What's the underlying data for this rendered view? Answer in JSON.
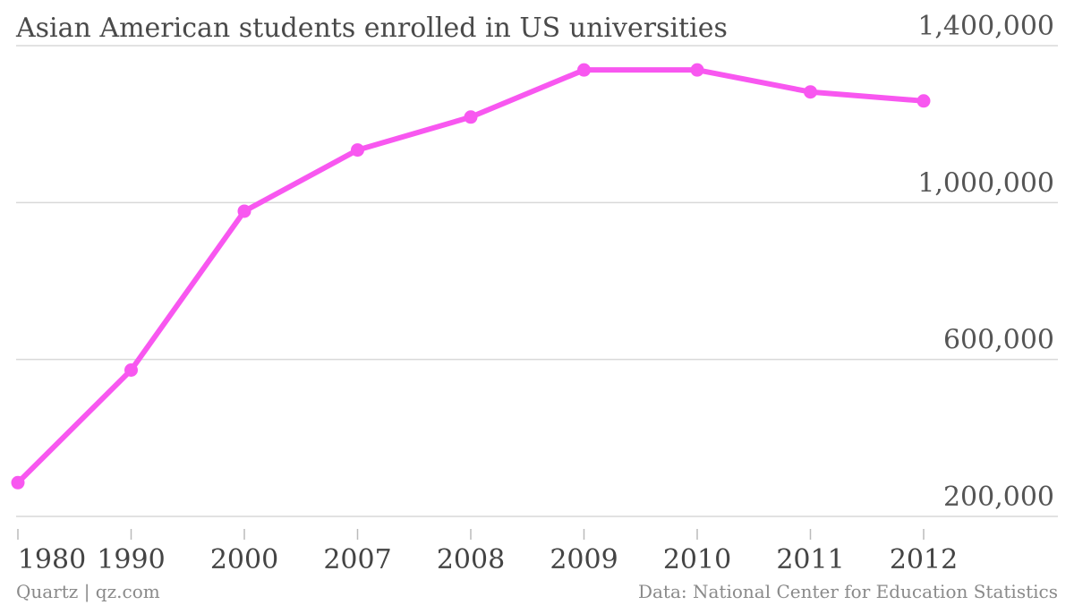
{
  "chart_data": {
    "type": "line",
    "title": "Asian American students enrolled in US universities",
    "xlabel": "",
    "ylabel": "",
    "categories": [
      "1980",
      "1990",
      "2000",
      "2007",
      "2008",
      "2009",
      "2010",
      "2011",
      "2012"
    ],
    "series": [
      {
        "values": [
          286000,
          573000,
          978000,
          1134000,
          1218000,
          1338000,
          1338000,
          1282000,
          1259000
        ]
      }
    ],
    "y_ticks": [
      "200,000",
      "600,000",
      "1,000,000",
      "1,400,000"
    ],
    "y_tick_values": [
      200000,
      600000,
      1000000,
      1400000
    ],
    "ylim": [
      200000,
      1400000
    ],
    "y_axis_side": "right",
    "grid": true,
    "legend": "none",
    "line_color": "#f857f0"
  },
  "footer": {
    "left": "Quartz | qz.com",
    "right": "Data: National Center for Education Statistics"
  }
}
